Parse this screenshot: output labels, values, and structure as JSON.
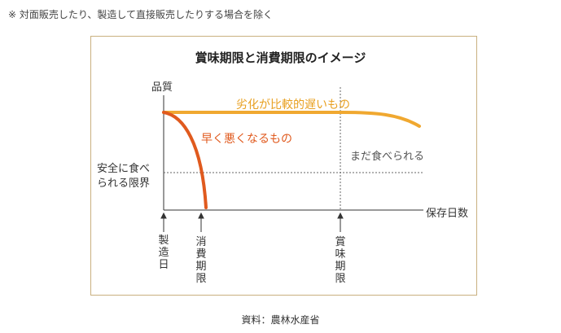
{
  "note": "※ 対面販売したり、製造して直接販売したりする場合を除く",
  "title": "賞味期限と消費期限のイメージ",
  "axes": {
    "y_label": "品質",
    "x_label": "保存日数",
    "safety_limit_line1": "安全に食べ",
    "safety_limit_line2": "られる限界"
  },
  "curves": {
    "slow": "劣化が比較的遅いもの",
    "fast": "早く悪くなるもの",
    "still_edible": "まだ食べられる"
  },
  "markers": {
    "manufacture": "製造日",
    "consume_by": "消費期限",
    "best_before": "賞味期限"
  },
  "source": "資料：農林水産省",
  "colors": {
    "slow_curve": "#f0a830",
    "fast_curve": "#e05a1e",
    "slow_label": "#e8a020",
    "fast_label": "#e05a1e",
    "frame": "#c9b07f"
  }
}
